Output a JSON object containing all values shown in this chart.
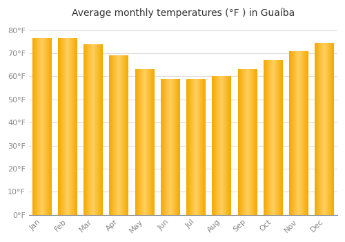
{
  "title": "Average monthly temperatures (°F ) in Guaíba",
  "months": [
    "Jan",
    "Feb",
    "Mar",
    "Apr",
    "May",
    "Jun",
    "Jul",
    "Aug",
    "Sep",
    "Oct",
    "Nov",
    "Dec"
  ],
  "values": [
    76.5,
    76.5,
    74.0,
    69.0,
    63.0,
    59.0,
    59.0,
    60.0,
    63.0,
    67.0,
    71.0,
    74.5
  ],
  "bar_color_center": "#FFD060",
  "bar_color_edge": "#F5A800",
  "background_color": "#FFFFFF",
  "grid_color": "#DDDDDD",
  "yticks": [
    0,
    10,
    20,
    30,
    40,
    50,
    60,
    70,
    80
  ],
  "ylim": [
    0,
    83
  ],
  "title_fontsize": 10,
  "tick_fontsize": 8,
  "tick_color": "#888888"
}
